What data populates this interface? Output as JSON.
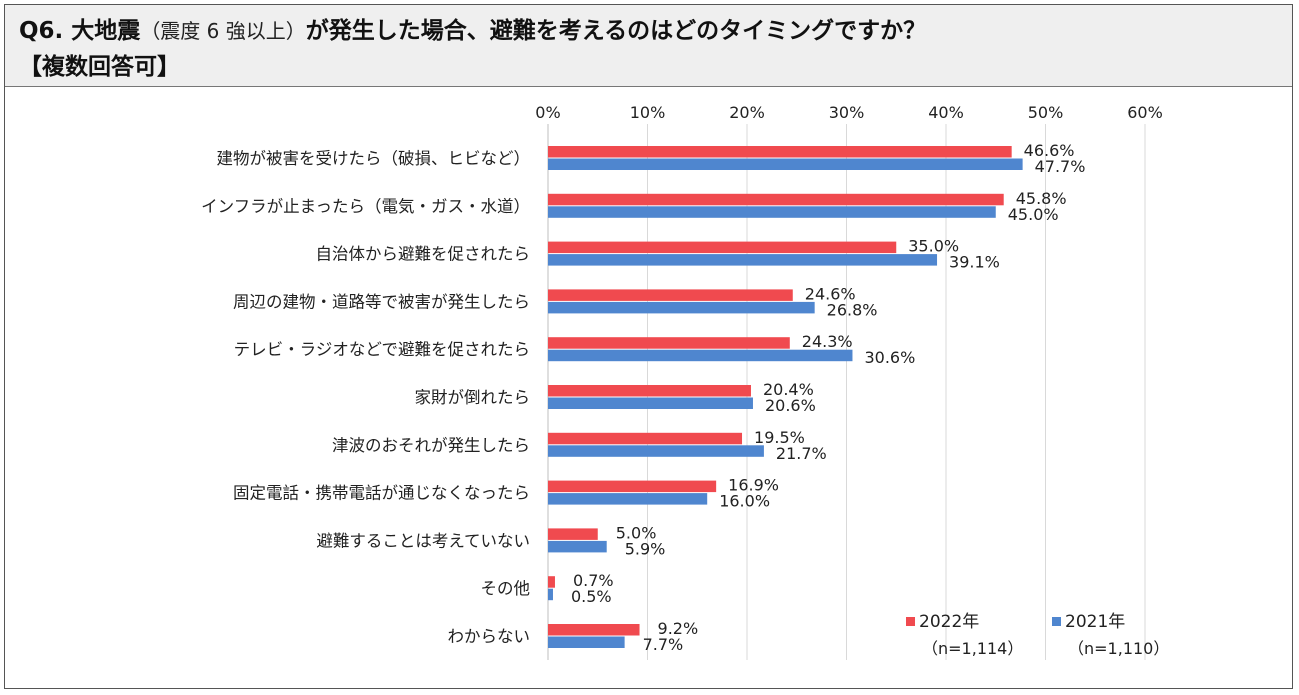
{
  "header": {
    "q_prefix": "Q6. 大地震",
    "q_paren": "（震度 6 強以上）",
    "q_suffix": "が発生した場合、避難を考えるのはどのタイミングですか？",
    "note": "【複数回答可】"
  },
  "colors": {
    "y2022": "#f04a4f",
    "y2021": "#4f86cf",
    "grid": "#d9d9d9",
    "text": "#222222"
  },
  "chart_data": {
    "type": "bar",
    "orientation": "horizontal",
    "categories": [
      "建物が被害を受けたら（破損、ヒビなど）",
      "インフラが止まったら（電気・ガス・水道）",
      "自治体から避難を促されたら",
      "周辺の建物・道路等で被害が発生したら",
      "テレビ・ラジオなどで避難を促されたら",
      "家財が倒れたら",
      "津波のおそれが発生したら",
      "固定電話・携帯電話が通じなくなったら",
      "避難することは考えていない",
      "その他",
      "わからない"
    ],
    "series": [
      {
        "name": "2022年",
        "n": "（n=1,114）",
        "color": "#f04a4f",
        "values": [
          46.6,
          45.8,
          35.0,
          24.6,
          24.3,
          20.4,
          19.5,
          16.9,
          5.0,
          0.7,
          9.2
        ]
      },
      {
        "name": "2021年",
        "n": "（n=1,110）",
        "color": "#4f86cf",
        "values": [
          47.7,
          45.0,
          39.1,
          26.8,
          30.6,
          20.6,
          21.7,
          16.0,
          5.9,
          0.5,
          7.7
        ]
      }
    ],
    "xlim": [
      0,
      60
    ],
    "xticks": [
      0,
      10,
      20,
      30,
      40,
      50,
      60
    ],
    "tick_suffix": "%",
    "grid": true,
    "legend": "bottom-right",
    "title": "",
    "xlabel": "",
    "ylabel": ""
  }
}
